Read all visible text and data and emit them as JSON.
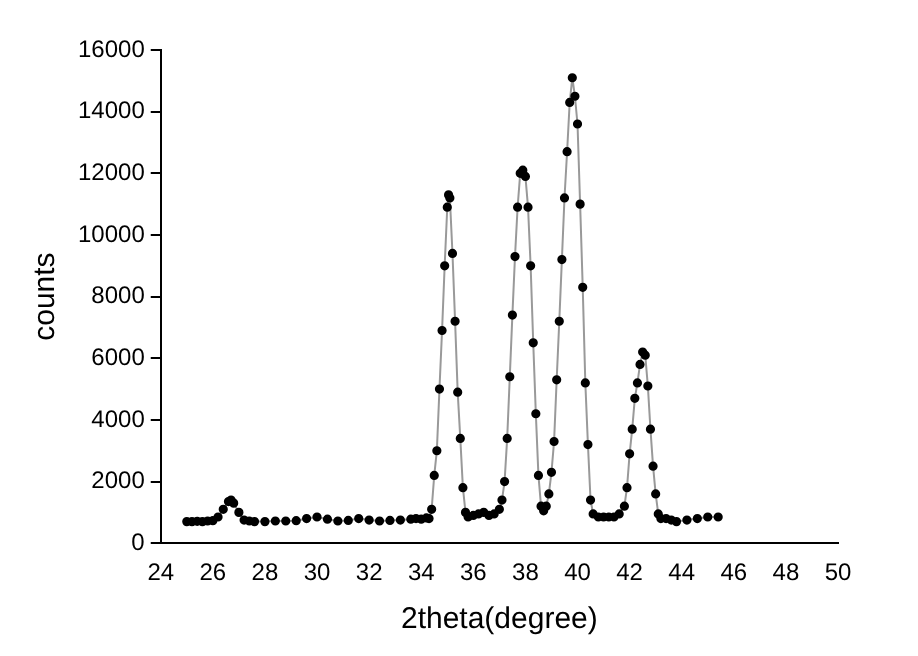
{
  "chart_data": {
    "type": "line",
    "xlabel": "2theta(degree)",
    "ylabel": "counts",
    "xlim": [
      24,
      50
    ],
    "xticks": [
      24,
      26,
      28,
      30,
      32,
      34,
      36,
      38,
      40,
      42,
      44,
      46,
      48,
      50
    ],
    "ylim": [
      0,
      16000
    ],
    "yticks": [
      0,
      2000,
      4000,
      6000,
      8000,
      10000,
      12000,
      14000,
      16000
    ],
    "grid": false,
    "legend": false,
    "marker": "circle",
    "line_style": "solid",
    "series": [
      {
        "color": "#000000",
        "x": [
          25.0,
          25.2,
          25.4,
          25.6,
          25.8,
          26.0,
          26.2,
          26.4,
          26.6,
          26.7,
          26.8,
          27.0,
          27.2,
          27.4,
          27.6,
          28.0,
          28.4,
          28.8,
          29.2,
          29.6,
          30.0,
          30.4,
          30.8,
          31.2,
          31.6,
          32.0,
          32.4,
          32.8,
          33.2,
          33.6,
          33.8,
          34.0,
          34.2,
          34.3,
          34.4,
          34.5,
          34.6,
          34.7,
          34.8,
          34.9,
          35.0,
          35.05,
          35.1,
          35.2,
          35.3,
          35.4,
          35.5,
          35.6,
          35.7,
          35.8,
          36.0,
          36.2,
          36.4,
          36.6,
          36.8,
          37.0,
          37.1,
          37.2,
          37.3,
          37.4,
          37.5,
          37.6,
          37.7,
          37.8,
          37.9,
          38.0,
          38.1,
          38.2,
          38.3,
          38.4,
          38.5,
          38.6,
          38.7,
          38.8,
          38.9,
          39.0,
          39.1,
          39.2,
          39.3,
          39.4,
          39.5,
          39.6,
          39.7,
          39.8,
          39.9,
          40.0,
          40.1,
          40.2,
          40.3,
          40.4,
          40.5,
          40.6,
          40.8,
          41.0,
          41.2,
          41.4,
          41.6,
          41.8,
          41.9,
          42.0,
          42.1,
          42.2,
          42.3,
          42.4,
          42.5,
          42.6,
          42.7,
          42.8,
          42.9,
          43.0,
          43.1,
          43.2,
          43.4,
          43.6,
          43.8,
          44.2,
          44.6,
          45.0,
          45.4
        ],
        "values": [
          700,
          700,
          710,
          700,
          720,
          730,
          850,
          1100,
          1350,
          1400,
          1300,
          1000,
          750,
          720,
          700,
          700,
          720,
          720,
          730,
          800,
          850,
          780,
          720,
          740,
          800,
          750,
          720,
          740,
          750,
          780,
          800,
          780,
          820,
          800,
          1100,
          2200,
          3000,
          5000,
          6900,
          9000,
          10900,
          11300,
          11200,
          9400,
          7200,
          4900,
          3400,
          1800,
          1000,
          850,
          900,
          950,
          1000,
          900,
          950,
          1100,
          1400,
          2000,
          3400,
          5400,
          7400,
          9300,
          10900,
          12000,
          12100,
          11900,
          10900,
          9000,
          6500,
          4200,
          2200,
          1200,
          1050,
          1200,
          1600,
          2300,
          3300,
          5300,
          7200,
          9200,
          11200,
          12700,
          14300,
          15100,
          14500,
          13600,
          11000,
          8300,
          5200,
          3200,
          1400,
          950,
          850,
          850,
          850,
          850,
          950,
          1200,
          1800,
          2900,
          3700,
          4700,
          5200,
          5800,
          6200,
          6100,
          5100,
          3700,
          2500,
          1600,
          950,
          800,
          800,
          750,
          700,
          750,
          800,
          850,
          850
        ]
      }
    ]
  }
}
